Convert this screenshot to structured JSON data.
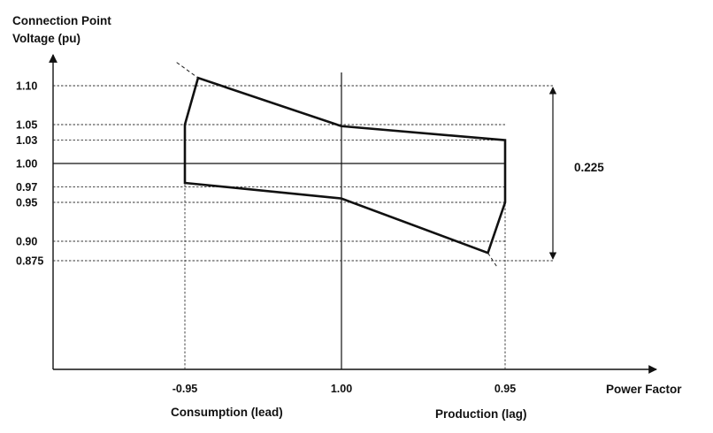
{
  "y_axis": {
    "title_line1": "Connection Point",
    "title_line2": "Voltage (pu)",
    "ticks": [
      {
        "label": "1.10",
        "value": 1.1
      },
      {
        "label": "1.05",
        "value": 1.05
      },
      {
        "label": "1.03",
        "value": 1.03
      },
      {
        "label": "1.00",
        "value": 1.0
      },
      {
        "label": "0.97",
        "value": 0.97
      },
      {
        "label": "0.95",
        "value": 0.95
      },
      {
        "label": "0.90",
        "value": 0.9
      },
      {
        "label": "0.875",
        "value": 0.875
      }
    ]
  },
  "x_axis": {
    "title": "Power Factor",
    "ticks": [
      {
        "label": "-0.95",
        "value": -0.95
      },
      {
        "label": "1.00",
        "value": 0
      },
      {
        "label": "0.95",
        "value": 0.95
      }
    ],
    "region_left": "Consumption (lead)",
    "region_right": "Production (lag)"
  },
  "range_annotation": {
    "label": "0.225",
    "from": 0.875,
    "to": 1.1
  },
  "envelope": {
    "upper": [
      {
        "pf": -0.95,
        "v": 1.05
      },
      {
        "pf": -0.87,
        "v": 1.11
      },
      {
        "pf": 0,
        "v": 1.048
      },
      {
        "pf": 0.95,
        "v": 1.03
      }
    ],
    "lower": [
      {
        "pf": -0.95,
        "v": 0.975
      },
      {
        "pf": 0,
        "v": 0.955
      },
      {
        "pf": 0.85,
        "v": 0.885
      },
      {
        "pf": 0.95,
        "v": 0.95
      }
    ],
    "dashed_extensions": [
      [
        {
          "pf": -1.0,
          "v": 1.13
        },
        {
          "pf": -0.87,
          "v": 1.11
        }
      ],
      [
        {
          "pf": 0.85,
          "v": 0.885
        },
        {
          "pf": 0.9,
          "v": 0.868
        }
      ]
    ]
  }
}
